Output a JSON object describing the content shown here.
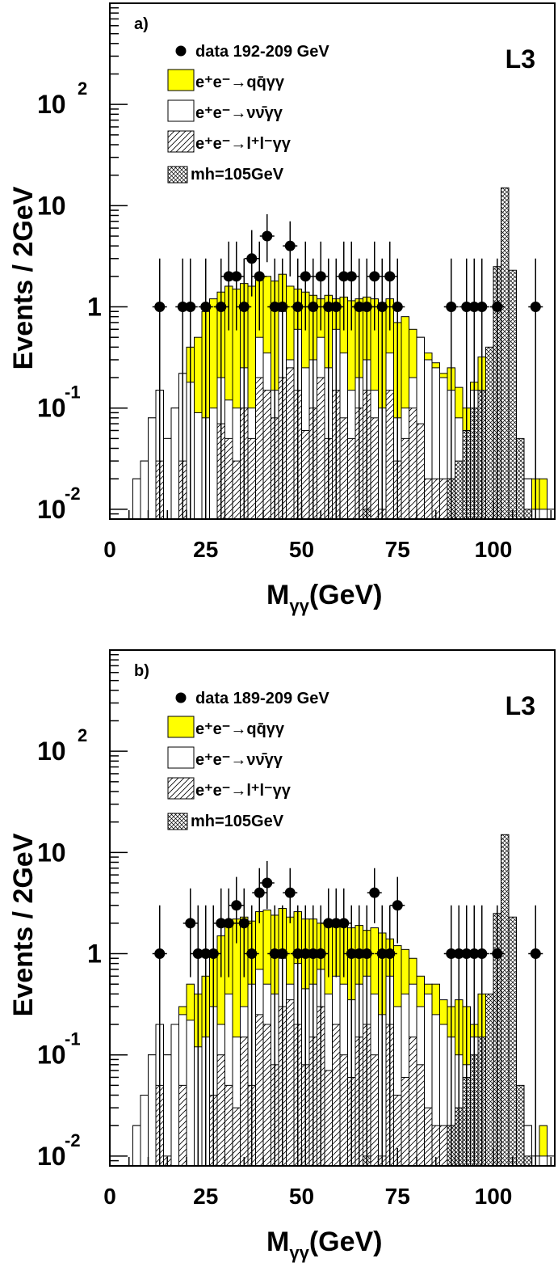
{
  "colors": {
    "yellow": "#ffff00",
    "black": "#000000",
    "white": "#ffffff"
  },
  "chart_data": [
    {
      "type": "histogram",
      "panel_label": "a)",
      "experiment_label": "L3",
      "xlabel": "M",
      "xlabel_sub": "γγ",
      "xlabel_unit": "(GeV)",
      "ylabel": "Events / 2GeV",
      "y_scale": "log",
      "xlim": [
        0,
        116
      ],
      "ylim": [
        0.008,
        1000
      ],
      "x_ticks": [
        "0",
        "25",
        "50",
        "75",
        "100"
      ],
      "y_ticks": [
        {
          "base": "10",
          "exp": "-2",
          "value": 0.01
        },
        {
          "base": "10",
          "exp": "-1",
          "value": 0.1
        },
        {
          "base": "1",
          "exp": "",
          "value": 1
        },
        {
          "base": "10",
          "exp": "",
          "value": 10
        },
        {
          "base": "10",
          "exp": "2",
          "value": 100
        }
      ],
      "legend": [
        {
          "text": "data 192-209 GeV",
          "style": "marker"
        },
        {
          "text": "e⁺e⁻→qq̄γγ",
          "style": "yellow"
        },
        {
          "text": "e⁺e⁻→νν̄γγ",
          "style": "open"
        },
        {
          "text": "e⁺e⁻→l⁺l⁻γγ",
          "style": "hatch"
        },
        {
          "text": "mh=105GeV",
          "style": "crosshatch"
        }
      ],
      "bins_x": [
        6,
        8,
        10,
        12,
        14,
        16,
        18,
        20,
        22,
        24,
        26,
        28,
        30,
        32,
        34,
        36,
        38,
        40,
        42,
        44,
        46,
        48,
        50,
        52,
        54,
        56,
        58,
        60,
        62,
        64,
        66,
        68,
        70,
        72,
        74,
        76,
        78,
        80,
        82,
        84,
        86,
        88,
        90,
        92,
        94,
        96,
        98,
        100,
        102,
        104,
        106,
        108,
        110,
        112,
        114,
        116
      ],
      "series": [
        {
          "name": "e⁺e⁻→qq̄γγ (total)",
          "values": [
            0.02,
            0.03,
            0.08,
            0.15,
            0.05,
            0.1,
            0.22,
            0.4,
            0.5,
            0.9,
            1.2,
            1.4,
            1.6,
            1.5,
            1.7,
            1.6,
            1.9,
            2.0,
            1.8,
            2.1,
            1.6,
            1.5,
            1.4,
            1.3,
            1.2,
            1.3,
            1.2,
            1.25,
            1.15,
            1.2,
            1.25,
            1.2,
            1.1,
            1.2,
            0.7,
            0.8,
            0.6,
            0.5,
            0.35,
            0.28,
            0.22,
            0.25,
            0.16,
            0.1,
            0.18,
            0.32,
            0.12,
            0.1,
            0.06,
            0.05,
            0.015,
            0.02,
            0.02,
            0.02,
            0.01
          ]
        },
        {
          "name": "e⁺e⁻→νν̄γγ",
          "values": [
            0.02,
            0.03,
            0.08,
            0.15,
            0.05,
            0.1,
            0.22,
            0.18,
            0.09,
            0.08,
            0.1,
            0.2,
            0.12,
            0.1,
            0.25,
            0.1,
            0.5,
            0.35,
            0.15,
            0.9,
            0.3,
            0.6,
            0.25,
            0.3,
            0.5,
            0.25,
            0.6,
            0.35,
            0.15,
            0.2,
            0.3,
            0.15,
            0.1,
            0.35,
            0.08,
            0.1,
            0.2,
            0.5,
            0.3,
            0.25,
            0.2,
            0.15,
            0.08,
            0.05,
            0.15,
            0.12,
            0.08,
            0.06,
            0.03,
            0.02,
            0.015,
            0.02,
            0.01,
            0.01,
            0.01
          ]
        },
        {
          "name": "e⁺e⁻→l⁺l⁻γγ",
          "values": [
            0,
            0,
            0,
            0.03,
            0,
            0,
            0.03,
            0,
            0,
            0,
            0,
            0.07,
            0.05,
            0.03,
            0.1,
            0.05,
            0.2,
            0.15,
            0.08,
            0.2,
            0.25,
            0.15,
            0.06,
            0.1,
            0.2,
            0.05,
            0.15,
            0.08,
            0.05,
            0.1,
            0.15,
            0.08,
            0.01,
            0.15,
            0.03,
            0.05,
            0.1,
            0.07,
            0.02,
            0.02,
            0.02,
            0.02,
            0.01,
            0,
            0.02,
            0.01,
            0,
            0,
            0,
            0,
            0,
            0,
            0,
            0,
            0
          ]
        },
        {
          "name": "mh=105GeV",
          "values": [
            0,
            0,
            0,
            0,
            0,
            0,
            0,
            0,
            0,
            0,
            0,
            0,
            0,
            0,
            0,
            0,
            0,
            0,
            0,
            0,
            0,
            0,
            0,
            0,
            0,
            0,
            0,
            0,
            0,
            0,
            0.01,
            0,
            0,
            0,
            0,
            0,
            0,
            0,
            0,
            0,
            0,
            0.02,
            0.03,
            0.06,
            0.1,
            0.15,
            0.4,
            2.5,
            15,
            2.3,
            0.05,
            0.01,
            0,
            0,
            0
          ]
        }
      ],
      "data_points": {
        "x": [
          13,
          19,
          21,
          25,
          29,
          31,
          33,
          35,
          37,
          39,
          41,
          43,
          45,
          47,
          49,
          51,
          53,
          55,
          57,
          59,
          61,
          63,
          65,
          67,
          69,
          71,
          73,
          75,
          89,
          93,
          95,
          97,
          101,
          111
        ],
        "y": [
          1,
          1,
          1,
          1,
          1,
          2,
          2,
          1,
          3,
          2,
          5,
          1,
          1,
          4,
          1,
          2,
          1,
          2,
          1,
          1,
          2,
          2,
          1,
          1,
          2,
          1,
          2,
          1,
          1,
          1,
          1,
          1,
          1,
          1
        ]
      }
    },
    {
      "type": "histogram",
      "panel_label": "b)",
      "experiment_label": "L3",
      "xlabel": "M",
      "xlabel_sub": "γγ",
      "xlabel_unit": "(GeV)",
      "ylabel": "Events / 2GeV",
      "y_scale": "log",
      "xlim": [
        0,
        116
      ],
      "ylim": [
        0.008,
        1000
      ],
      "x_ticks": [
        "0",
        "25",
        "50",
        "75",
        "100"
      ],
      "y_ticks": [
        {
          "base": "10",
          "exp": "-2",
          "value": 0.01
        },
        {
          "base": "10",
          "exp": "-1",
          "value": 0.1
        },
        {
          "base": "1",
          "exp": "",
          "value": 1
        },
        {
          "base": "10",
          "exp": "",
          "value": 10
        },
        {
          "base": "10",
          "exp": "2",
          "value": 100
        }
      ],
      "legend": [
        {
          "text": "data 189-209 GeV",
          "style": "marker"
        },
        {
          "text": "e⁺e⁻→qq̄γγ",
          "style": "yellow"
        },
        {
          "text": "e⁺e⁻→νν̄γγ",
          "style": "open"
        },
        {
          "text": "e⁺e⁻→l⁺l⁻γγ",
          "style": "hatch"
        },
        {
          "text": "mh=105GeV",
          "style": "crosshatch"
        }
      ],
      "bins_x": [
        6,
        8,
        10,
        12,
        14,
        16,
        18,
        20,
        22,
        24,
        26,
        28,
        30,
        32,
        34,
        36,
        38,
        40,
        42,
        44,
        46,
        48,
        50,
        52,
        54,
        56,
        58,
        60,
        62,
        64,
        66,
        68,
        70,
        72,
        74,
        76,
        78,
        80,
        82,
        84,
        86,
        88,
        90,
        92,
        94,
        96,
        98,
        100,
        102,
        104,
        106,
        108,
        110,
        112,
        114,
        116
      ],
      "series": [
        {
          "name": "e⁺e⁻→qq̄γγ (total)",
          "values": [
            0.02,
            0.04,
            0.1,
            0.2,
            0.1,
            0.2,
            0.3,
            0.5,
            0.4,
            0.6,
            1.0,
            1.5,
            2.0,
            2.2,
            2.3,
            2.1,
            2.6,
            2.7,
            2.4,
            2.8,
            2.3,
            2.6,
            2.2,
            2.2,
            2.0,
            2.0,
            2.1,
            1.9,
            1.8,
            1.9,
            1.7,
            1.8,
            1.6,
            1.4,
            1.2,
            1.1,
            0.9,
            0.6,
            0.5,
            0.5,
            0.35,
            0.3,
            0.35,
            0.3,
            0.2,
            0.4,
            0.25,
            0.2,
            0.05,
            0.04,
            0.015,
            0.02,
            0.01,
            0.02,
            0.01
          ]
        },
        {
          "name": "e⁺e⁻→νν̄γγ",
          "values": [
            0.02,
            0.04,
            0.1,
            0.2,
            0.1,
            0.2,
            0.25,
            0.22,
            0.12,
            0.15,
            0.3,
            0.2,
            0.4,
            0.15,
            0.3,
            0.5,
            0.7,
            0.5,
            0.4,
            0.9,
            0.5,
            0.8,
            0.45,
            0.5,
            0.7,
            0.4,
            0.6,
            0.5,
            0.35,
            0.5,
            0.6,
            0.4,
            0.25,
            0.6,
            0.3,
            0.4,
            0.5,
            0.3,
            0.4,
            0.25,
            0.2,
            0.15,
            0.1,
            0.08,
            0.15,
            0.1,
            0.08,
            0.05,
            0.03,
            0.02,
            0.015,
            0.02,
            0.01,
            0.01,
            0.01
          ]
        },
        {
          "name": "e⁺e⁻→l⁺l⁻γγ",
          "values": [
            0,
            0,
            0,
            0.05,
            0.01,
            0,
            0.05,
            0,
            0,
            0,
            0.04,
            0.1,
            0.05,
            0.03,
            0.15,
            0.05,
            0.25,
            0.2,
            0.08,
            0.3,
            0.35,
            0.2,
            0.08,
            0.15,
            0.3,
            0.07,
            0.2,
            0.1,
            0.06,
            0.15,
            0.2,
            0.1,
            0.01,
            0.2,
            0.04,
            0.06,
            0.15,
            0.08,
            0.03,
            0.02,
            0.02,
            0.02,
            0.01,
            0,
            0.02,
            0.01,
            0,
            0,
            0,
            0,
            0,
            0,
            0,
            0,
            0
          ]
        },
        {
          "name": "mh=105GeV",
          "values": [
            0,
            0,
            0,
            0,
            0,
            0,
            0,
            0,
            0,
            0,
            0,
            0,
            0,
            0,
            0,
            0,
            0,
            0,
            0,
            0,
            0,
            0,
            0,
            0,
            0,
            0,
            0,
            0,
            0,
            0,
            0.01,
            0,
            0,
            0,
            0,
            0,
            0,
            0,
            0,
            0,
            0,
            0.02,
            0.03,
            0.06,
            0.1,
            0.15,
            0.4,
            2.5,
            15,
            2.3,
            0.05,
            0.01,
            0,
            0,
            0
          ]
        }
      ],
      "data_points": {
        "x": [
          13,
          21,
          23,
          25,
          27,
          29,
          31,
          33,
          35,
          37,
          39,
          41,
          43,
          45,
          47,
          49,
          51,
          53,
          55,
          57,
          59,
          61,
          63,
          65,
          67,
          69,
          71,
          73,
          75,
          89,
          91,
          93,
          95,
          97,
          101,
          111
        ],
        "y": [
          1,
          2,
          1,
          1,
          1,
          2,
          2,
          3,
          2,
          1,
          4,
          5,
          1,
          1,
          4,
          1,
          1,
          1,
          1,
          2,
          2,
          2,
          1,
          1,
          1,
          4,
          1,
          1,
          3,
          1,
          1,
          1,
          1,
          1,
          1,
          1
        ]
      }
    }
  ]
}
